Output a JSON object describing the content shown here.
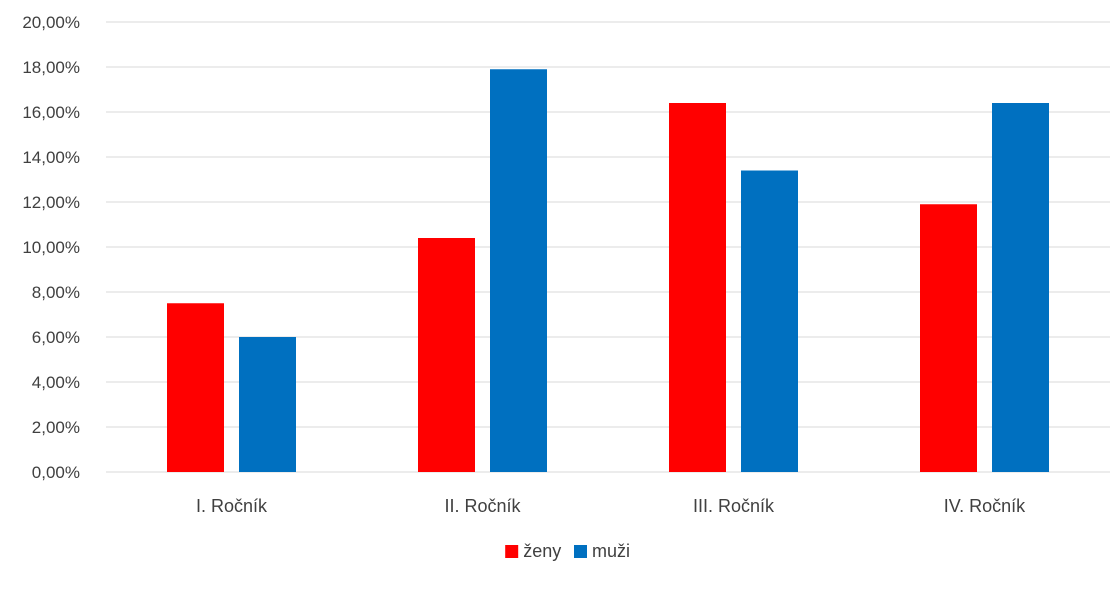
{
  "chart_data": {
    "type": "bar",
    "title": "",
    "xlabel": "",
    "ylabel": "",
    "categories": [
      "I. Ročník",
      "II. Ročník",
      "III. Ročník",
      "IV. Ročník"
    ],
    "series": [
      {
        "name": "ženy",
        "color": "#ff0000",
        "values": [
          7.5,
          10.4,
          16.4,
          11.9
        ]
      },
      {
        "name": "muži",
        "color": "#0070c0",
        "values": [
          6.0,
          17.9,
          13.4,
          16.4
        ]
      }
    ],
    "ylim": [
      0,
      20
    ],
    "yticks": [
      0,
      2,
      4,
      6,
      8,
      10,
      12,
      14,
      16,
      18,
      20
    ],
    "ytick_labels": [
      "0,00%",
      "2,00%",
      "4,00%",
      "6,00%",
      "8,00%",
      "10,00%",
      "12,00%",
      "14,00%",
      "16,00%",
      "18,00%",
      "20,00%"
    ],
    "grid": true,
    "grid_color": "#d9d9d9",
    "legend_position": "bottom"
  }
}
